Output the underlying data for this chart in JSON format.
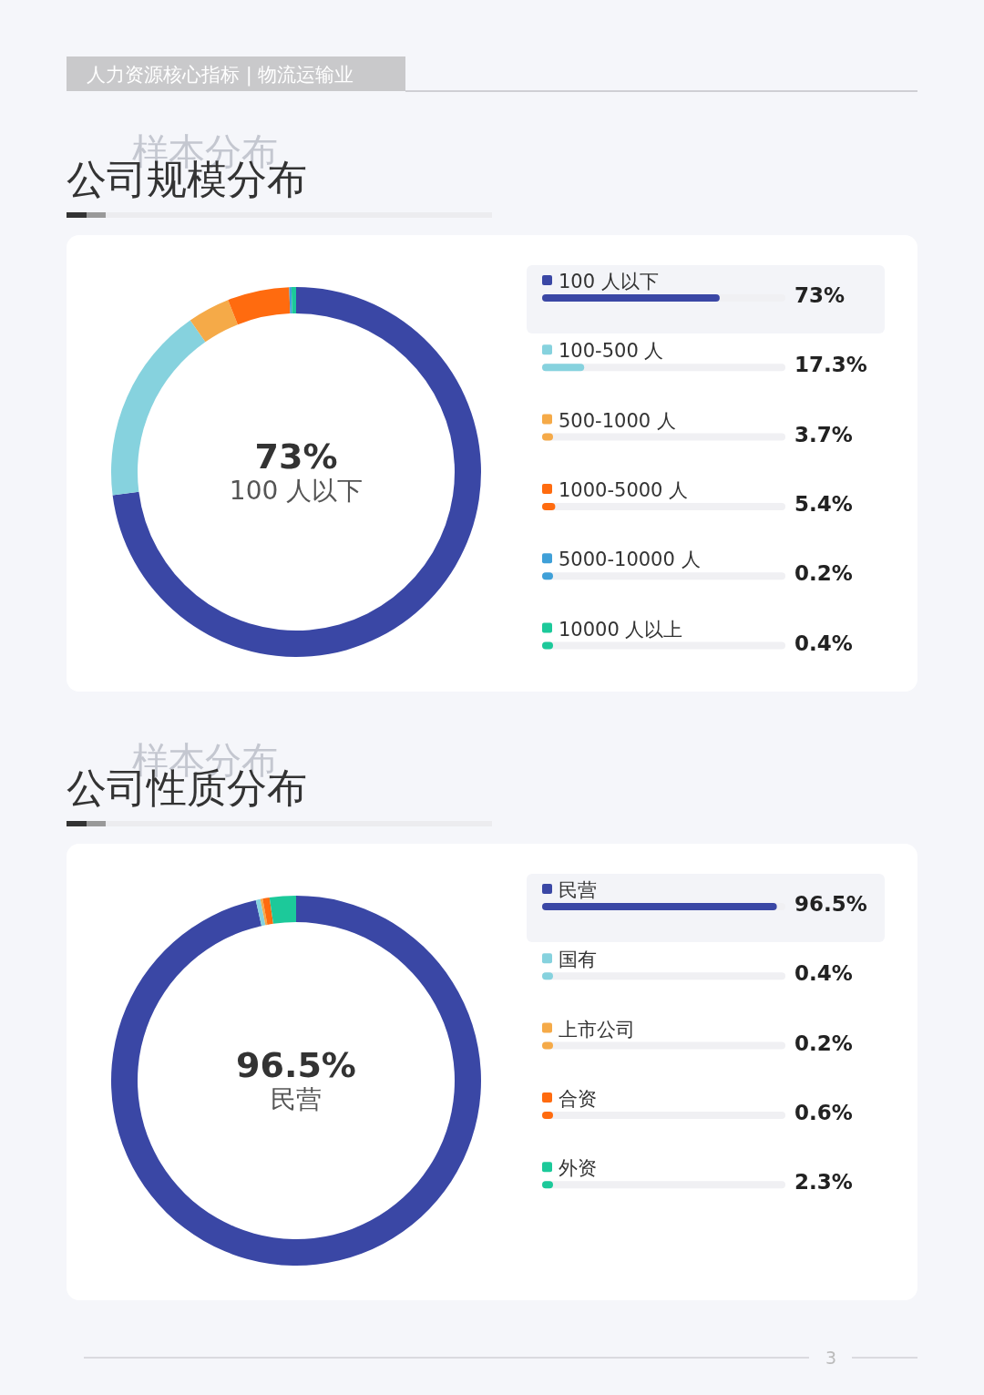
{
  "chart_data": [
    {
      "type": "donut",
      "title": "公司规模分布",
      "subtitle": "样本分布",
      "annotations": [
        "人力资源核心指标 | 物流运输业"
      ],
      "categories": [
        "100 人以下",
        "100-500 人",
        "500-1000 人",
        "1000-5000 人",
        "5000-10000 人",
        "10000 人以上"
      ],
      "values": [
        73,
        17.3,
        3.7,
        5.4,
        0.2,
        0.4
      ],
      "colors": [
        "#3a47a5",
        "#86d2de",
        "#f5aa48",
        "#ff6b0f",
        "#3fa0d8",
        "#1cc99a"
      ],
      "value_labels": [
        "73%",
        "17.3%",
        "3.7%",
        "5.4%",
        "0.2%",
        "0.4%"
      ],
      "legend": "right"
    },
    {
      "type": "donut",
      "title": "公司性质分布",
      "subtitle": "样本分布",
      "annotations": [
        "3"
      ],
      "categories": [
        "民营",
        "国有",
        "上市公司",
        "合资",
        "外资"
      ],
      "values": [
        96.5,
        0.4,
        0.2,
        0.6,
        2.3
      ],
      "colors": [
        "#3a47a5",
        "#86d2de",
        "#f5aa48",
        "#ff6b0f",
        "#1cc99a"
      ],
      "value_labels": [
        "96.5%",
        "0.4%",
        "0.2%",
        "0.6%",
        "2.3%"
      ],
      "legend": "right"
    }
  ]
}
